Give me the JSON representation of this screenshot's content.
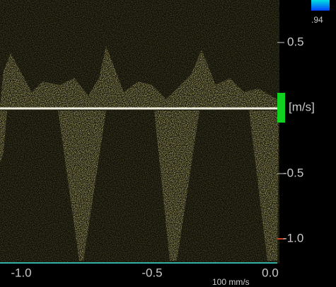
{
  "color_scale": {
    "max_label": ".94"
  },
  "velocity_scale": {
    "unit": "[m/s]",
    "ticks": [
      "0.5",
      "-0.5",
      "-1.0"
    ]
  },
  "time_axis": {
    "ticks": [
      "-1.0",
      "-0.5",
      "0.0"
    ],
    "sweep_speed": "100 mm/s"
  }
}
